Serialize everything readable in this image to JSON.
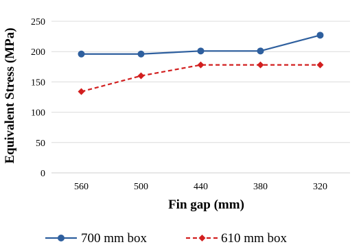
{
  "chart_data": {
    "type": "line",
    "title": "",
    "xlabel": "Fin gap (mm)",
    "ylabel": "Equivalent Stress (MPa)",
    "categories": [
      "560",
      "500",
      "440",
      "380",
      "320"
    ],
    "ylim": [
      0,
      250
    ],
    "yticks": [
      "0",
      "50",
      "100",
      "150",
      "200",
      "250"
    ],
    "grid": true,
    "legend_position": "bottom",
    "series": [
      {
        "name": "700 mm box",
        "values": [
          196,
          196,
          201,
          201,
          227
        ],
        "color": "#2e5f9e",
        "marker": "circle",
        "line_style": "solid"
      },
      {
        "name": "610 mm box",
        "values": [
          134,
          160,
          178,
          178,
          178
        ],
        "color": "#d21f1f",
        "marker": "diamond",
        "line_style": "dashed"
      }
    ]
  }
}
